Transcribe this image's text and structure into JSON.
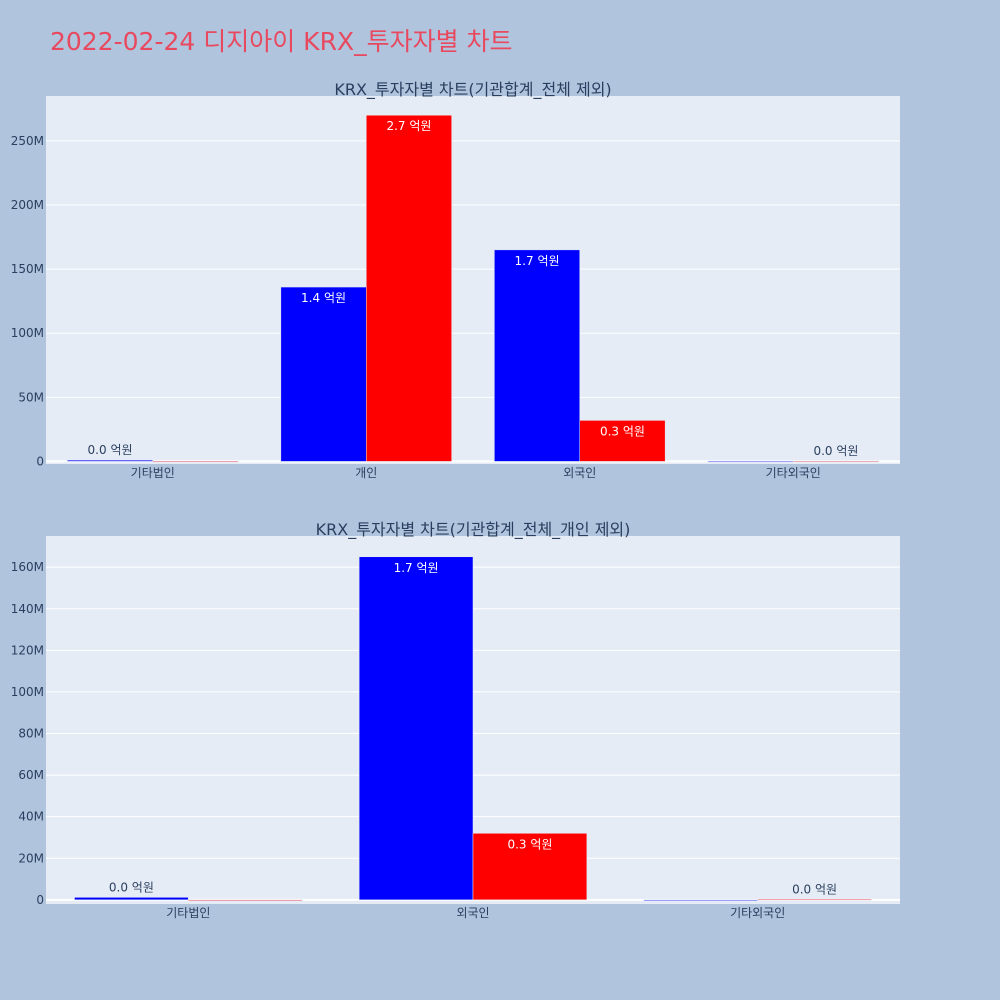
{
  "page": {
    "title": "2022-02-24 디지아이 KRX_투자자별 차트"
  },
  "colors": {
    "background": "#b0c4de",
    "plot_bg": "#e5ecf6",
    "title": "#e8495f",
    "buy": "#0000ff",
    "sell": "#ff0000"
  },
  "chart_data": [
    {
      "type": "bar",
      "title": "KRX_투자자별 차트(기관합계_전체 제외)",
      "categories": [
        "기타법인",
        "개인",
        "외국인",
        "기타외국인"
      ],
      "y_tick_labels": [
        "0",
        "50M",
        "100M",
        "150M",
        "200M",
        "250M"
      ],
      "y_tick_values": [
        0,
        50000000,
        100000000,
        150000000,
        200000000,
        250000000
      ],
      "ylim": [
        -2000000,
        285000000
      ],
      "grid": true,
      "series": [
        {
          "color": "#0000ff",
          "values": [
            1000000,
            136000000,
            165000000,
            0
          ],
          "labels": [
            "0.0 억원",
            "1.4 억원",
            "1.7 억원",
            ""
          ]
        },
        {
          "color": "#ff0000",
          "values": [
            0,
            270000000,
            32000000,
            200000
          ],
          "labels": [
            "",
            "2.7 억원",
            "0.3 억원",
            "0.0 억원"
          ]
        }
      ]
    },
    {
      "type": "bar",
      "title": "KRX_투자자별 차트(기관합계_전체_개인 제외)",
      "categories": [
        "기타법인",
        "외국인",
        "기타외국인"
      ],
      "y_tick_labels": [
        "0",
        "20M",
        "40M",
        "60M",
        "80M",
        "100M",
        "120M",
        "140M",
        "160M"
      ],
      "y_tick_values": [
        0,
        20000000,
        40000000,
        60000000,
        80000000,
        100000000,
        120000000,
        140000000,
        160000000
      ],
      "ylim": [
        -2000000,
        175000000
      ],
      "grid": true,
      "series": [
        {
          "color": "#0000ff",
          "values": [
            1200000,
            165000000,
            0
          ],
          "labels": [
            "0.0 억원",
            "1.7 억원",
            ""
          ]
        },
        {
          "color": "#ff0000",
          "values": [
            0,
            32000000,
            200000
          ],
          "labels": [
            "",
            "0.3 억원",
            "0.0 억원"
          ]
        }
      ]
    }
  ]
}
